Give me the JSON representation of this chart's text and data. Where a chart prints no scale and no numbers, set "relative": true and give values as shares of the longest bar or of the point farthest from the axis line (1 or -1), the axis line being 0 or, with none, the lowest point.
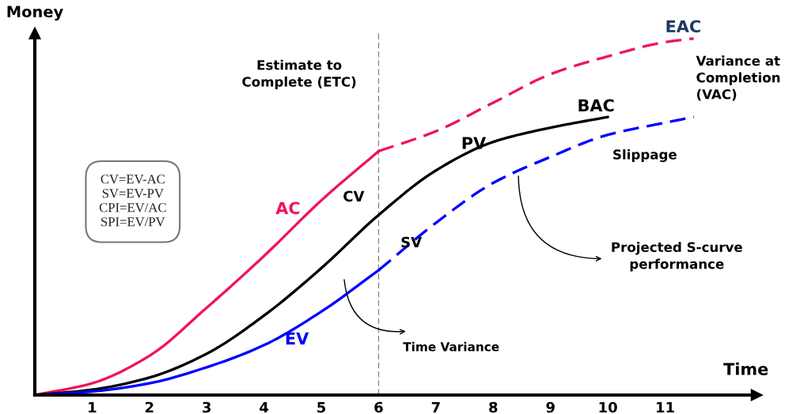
{
  "chart_data": {
    "type": "line",
    "relative": true,
    "xlabel": "Time",
    "ylabel": "Money",
    "x": [
      0,
      1,
      2,
      3,
      4,
      5,
      6
    ],
    "xlim": [
      0,
      12.6
    ],
    "xticks": [
      1,
      2,
      3,
      4,
      5,
      6,
      7,
      8,
      9,
      10,
      11
    ],
    "series": [
      {
        "name": "AC",
        "color": "#f0145a",
        "line_style": "solid",
        "values": [
          0,
          0.033,
          0.11,
          0.245,
          0.39,
          0.546,
          0.684
        ]
      },
      {
        "color": "#f0145a",
        "line_style": "dashed",
        "x": [
          6,
          7,
          8,
          9,
          10,
          11,
          11.5
        ],
        "values": [
          0.684,
          0.74,
          0.82,
          0.9,
          0.95,
          0.99,
          1.0
        ]
      },
      {
        "name": "PV",
        "color": "#000000",
        "line_style": "solid",
        "x": [
          0,
          1,
          2,
          3,
          4,
          5,
          6,
          7,
          8,
          9,
          10
        ],
        "values": [
          0,
          0.015,
          0.049,
          0.116,
          0.223,
          0.356,
          0.505,
          0.63,
          0.71,
          0.75,
          0.78
        ]
      },
      {
        "name": "EV",
        "color": "#0000ff",
        "line_style": "solid",
        "values": [
          0,
          0.01,
          0.033,
          0.078,
          0.14,
          0.234,
          0.35
        ]
      },
      {
        "color": "#0000ff",
        "line_style": "dashed",
        "x": [
          6,
          7,
          8,
          9,
          10,
          11,
          11.5
        ],
        "values": [
          0.35,
          0.483,
          0.595,
          0.668,
          0.73,
          0.764,
          0.78
        ]
      }
    ],
    "ref_lines": [
      {
        "axis": "x",
        "value": 6,
        "color": "#808080",
        "line_style": "dashed"
      }
    ],
    "annotations": [
      "BAC",
      "EAC",
      "CV",
      "SV",
      "Slippage",
      "Estimate to\nComplete (ETC)",
      "Variance at\nCompletion\n(VAC)",
      "Projected S-curve\nperformance",
      "Time Variance",
      "CV=EV-AC\nSV=EV-PV\nCPI=EV/AC\nSPI=EV/PV"
    ],
    "legend": false,
    "grid": false,
    "marker": "none"
  }
}
